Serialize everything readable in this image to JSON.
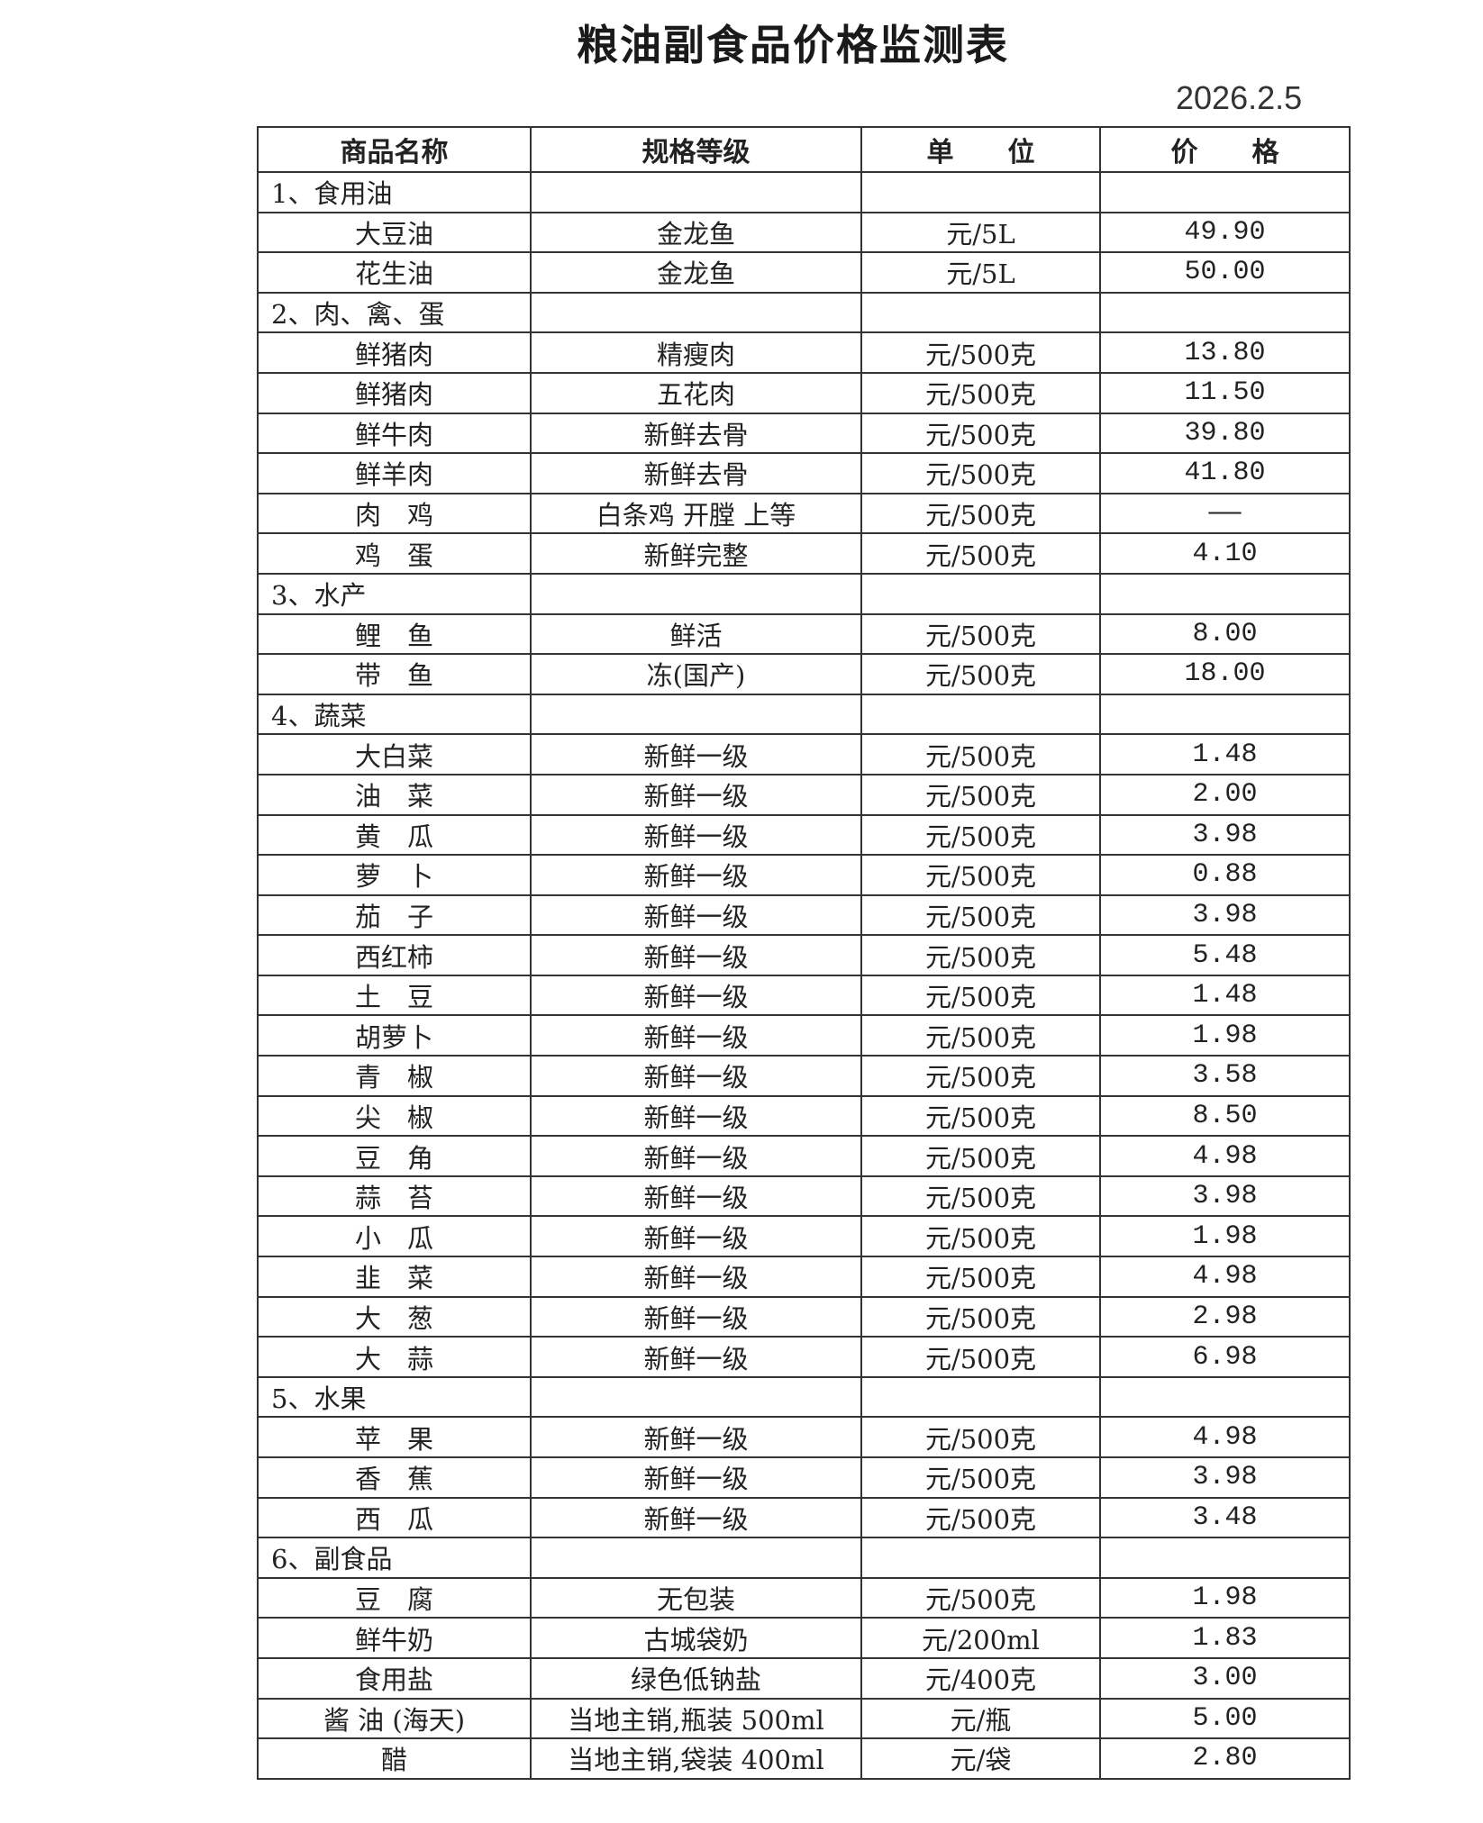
{
  "title": "粮油副食品价格监测表",
  "date": "2026.2.5",
  "headers": [
    "商品名称",
    "规格等级",
    "单　　位",
    "价　　格"
  ],
  "rows": [
    {
      "category": "1、食用油"
    },
    {
      "name": "大豆油",
      "spec": "金龙鱼",
      "unit": "元/5L",
      "price": "49.90"
    },
    {
      "name": "花生油",
      "spec": "金龙鱼",
      "unit": "元/5L",
      "price": "50.00"
    },
    {
      "category": "2、肉、禽、蛋"
    },
    {
      "name": "鲜猪肉",
      "spec": "精瘦肉",
      "unit": "元/500克",
      "price": "13.80"
    },
    {
      "name": "鲜猪肉",
      "spec": "五花肉",
      "unit": "元/500克",
      "price": "11.50"
    },
    {
      "name": "鲜牛肉",
      "spec": "新鲜去骨",
      "unit": "元/500克",
      "price": "39.80"
    },
    {
      "name": "鲜羊肉",
      "spec": "新鲜去骨",
      "unit": "元/500克",
      "price": "41.80"
    },
    {
      "name": "肉　鸡",
      "spec": "白条鸡 开膛 上等",
      "unit": "元/500克",
      "price": "——"
    },
    {
      "name": "鸡　蛋",
      "spec": "新鲜完整",
      "unit": "元/500克",
      "price": "4.10"
    },
    {
      "category": "3、水产"
    },
    {
      "name": "鲤　鱼",
      "spec": "鲜活",
      "unit": "元/500克",
      "price": "8.00"
    },
    {
      "name": "带　鱼",
      "spec": "冻(国产)",
      "unit": "元/500克",
      "price": "18.00"
    },
    {
      "category": "4、蔬菜"
    },
    {
      "name": "大白菜",
      "spec": "新鲜一级",
      "unit": "元/500克",
      "price": "1.48"
    },
    {
      "name": "油　菜",
      "spec": "新鲜一级",
      "unit": "元/500克",
      "price": "2.00"
    },
    {
      "name": "黄　瓜",
      "spec": "新鲜一级",
      "unit": "元/500克",
      "price": "3.98"
    },
    {
      "name": "萝　卜",
      "spec": "新鲜一级",
      "unit": "元/500克",
      "price": "0.88"
    },
    {
      "name": "茄　子",
      "spec": "新鲜一级",
      "unit": "元/500克",
      "price": "3.98"
    },
    {
      "name": "西红柿",
      "spec": "新鲜一级",
      "unit": "元/500克",
      "price": "5.48"
    },
    {
      "name": "土　豆",
      "spec": "新鲜一级",
      "unit": "元/500克",
      "price": "1.48"
    },
    {
      "name": "胡萝卜",
      "spec": "新鲜一级",
      "unit": "元/500克",
      "price": "1.98"
    },
    {
      "name": "青　椒",
      "spec": "新鲜一级",
      "unit": "元/500克",
      "price": "3.58"
    },
    {
      "name": "尖　椒",
      "spec": "新鲜一级",
      "unit": "元/500克",
      "price": "8.50"
    },
    {
      "name": "豆　角",
      "spec": "新鲜一级",
      "unit": "元/500克",
      "price": "4.98"
    },
    {
      "name": "蒜　苔",
      "spec": "新鲜一级",
      "unit": "元/500克",
      "price": "3.98"
    },
    {
      "name": "小　瓜",
      "spec": "新鲜一级",
      "unit": "元/500克",
      "price": "1.98"
    },
    {
      "name": "韭　菜",
      "spec": "新鲜一级",
      "unit": "元/500克",
      "price": "4.98"
    },
    {
      "name": "大　葱",
      "spec": "新鲜一级",
      "unit": "元/500克",
      "price": "2.98"
    },
    {
      "name": "大　蒜",
      "spec": "新鲜一级",
      "unit": "元/500克",
      "price": "6.98"
    },
    {
      "category": "5、水果"
    },
    {
      "name": "苹　果",
      "spec": "新鲜一级",
      "unit": "元/500克",
      "price": "4.98"
    },
    {
      "name": "香　蕉",
      "spec": "新鲜一级",
      "unit": "元/500克",
      "price": "3.98"
    },
    {
      "name": "西　瓜",
      "spec": "新鲜一级",
      "unit": "元/500克",
      "price": "3.48"
    },
    {
      "category": "6、副食品"
    },
    {
      "name": "豆　腐",
      "spec": "无包装",
      "unit": "元/500克",
      "price": "1.98"
    },
    {
      "name": "鲜牛奶",
      "spec": "古城袋奶",
      "unit": "元/200ml",
      "price": "1.83"
    },
    {
      "name": "食用盐",
      "spec": "绿色低钠盐",
      "unit": "元/400克",
      "price": "3.00"
    },
    {
      "name": "酱 油 (海天)",
      "spec": "当地主销,瓶装 500ml",
      "unit": "元/瓶",
      "price": "5.00"
    },
    {
      "name": "醋",
      "spec": "当地主销,袋装 400ml",
      "unit": "元/袋",
      "price": "2.80"
    }
  ]
}
